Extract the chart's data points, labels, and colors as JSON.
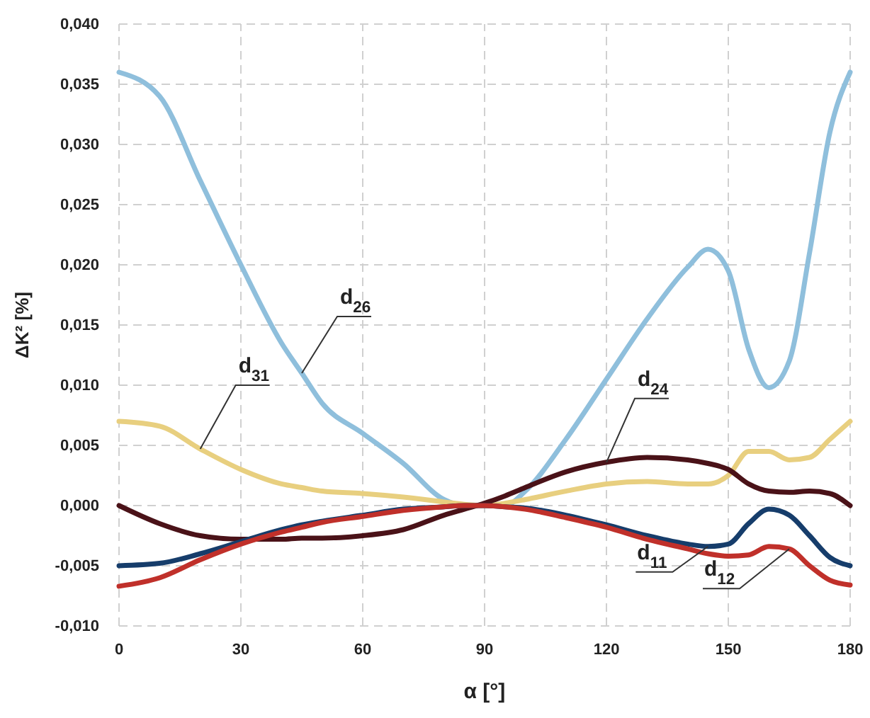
{
  "chart_data": {
    "type": "line",
    "xlabel": "α [°]",
    "ylabel": "ΔK² [%]",
    "x": [
      0,
      10,
      20,
      30,
      40,
      45,
      50,
      60,
      70,
      80,
      85,
      90,
      95,
      100,
      110,
      120,
      130,
      140,
      145,
      150,
      155,
      160,
      165,
      170,
      175,
      180
    ],
    "series": [
      {
        "name": "d$_{26}$",
        "color": "#8fbfdc",
        "values": [
          0.036,
          0.034,
          0.027,
          0.02,
          0.0135,
          0.011,
          0.0085,
          0.006,
          0.0035,
          0.0005,
          0,
          0,
          0,
          0.0012,
          0.0055,
          0.0105,
          0.0155,
          0.0198,
          0.0213,
          0.0195,
          0.013,
          0.0098,
          0.012,
          0.021,
          0.031,
          0.036
        ]
      },
      {
        "name": "d$_{31}$",
        "color": "#e8cf7f",
        "values": [
          0.007,
          0.0066,
          0.0047,
          0.003,
          0.0018,
          0.0015,
          0.0012,
          0.001,
          0.0007,
          0.0003,
          0.0001,
          0,
          0.0002,
          0.0005,
          0.0012,
          0.0018,
          0.002,
          0.0018,
          0.0018,
          0.0025,
          0.0045,
          0.0045,
          0.0038,
          0.004,
          0.0055,
          0.007
        ]
      },
      {
        "name": "d$_{24}$",
        "color": "#4a1218",
        "values": [
          0,
          -0.0015,
          -0.0025,
          -0.0028,
          -0.0028,
          -0.0027,
          -0.0027,
          -0.0025,
          -0.002,
          -0.0008,
          -0.0003,
          0.0002,
          0.0008,
          0.0015,
          0.0028,
          0.0036,
          0.004,
          0.0038,
          0.0035,
          0.003,
          0.0018,
          0.0012,
          0.0011,
          0.0012,
          0.001,
          0
        ]
      },
      {
        "name": "d$_{11}$",
        "color": "#163d6b",
        "values": [
          -0.005,
          -0.0048,
          -0.004,
          -0.003,
          -0.002,
          -0.0016,
          -0.0013,
          -0.0008,
          -0.0003,
          -0.0001,
          0,
          0,
          -0.0001,
          -0.0002,
          -0.0008,
          -0.0016,
          -0.0025,
          -0.0032,
          -0.0034,
          -0.0032,
          -0.0015,
          -0.0003,
          -0.0008,
          -0.0025,
          -0.0043,
          -0.005
        ]
      },
      {
        "name": "d$_{12}$",
        "color": "#c0302a",
        "values": [
          -0.0067,
          -0.006,
          -0.0045,
          -0.0032,
          -0.0022,
          -0.0018,
          -0.0014,
          -0.0009,
          -0.0004,
          -0.0001,
          0,
          0,
          -0.0001,
          -0.0003,
          -0.001,
          -0.0018,
          -0.0028,
          -0.0036,
          -0.004,
          -0.0042,
          -0.0041,
          -0.0034,
          -0.0036,
          -0.005,
          -0.0062,
          -0.0066
        ]
      }
    ],
    "xlim": [
      0,
      180
    ],
    "xticks": [
      0,
      30,
      60,
      90,
      120,
      150,
      180
    ],
    "ylim": [
      -0.01,
      0.04
    ],
    "yticks": [
      {
        "value": -0.01,
        "label": "-0,010"
      },
      {
        "value": -0.005,
        "label": "-0,005"
      },
      {
        "value": 0,
        "label": "0,000"
      },
      {
        "value": 0.005,
        "label": "0,005"
      },
      {
        "value": 0.01,
        "label": "0,010"
      },
      {
        "value": 0.015,
        "label": "0,015"
      },
      {
        "value": 0.02,
        "label": "0,020"
      },
      {
        "value": 0.025,
        "label": "0,025"
      },
      {
        "value": 0.03,
        "label": "0,030"
      },
      {
        "value": 0.035,
        "label": "0,035"
      },
      {
        "value": 0.04,
        "label": "0,040"
      }
    ],
    "grid": true,
    "line_style": "solid",
    "marker": "none"
  }
}
